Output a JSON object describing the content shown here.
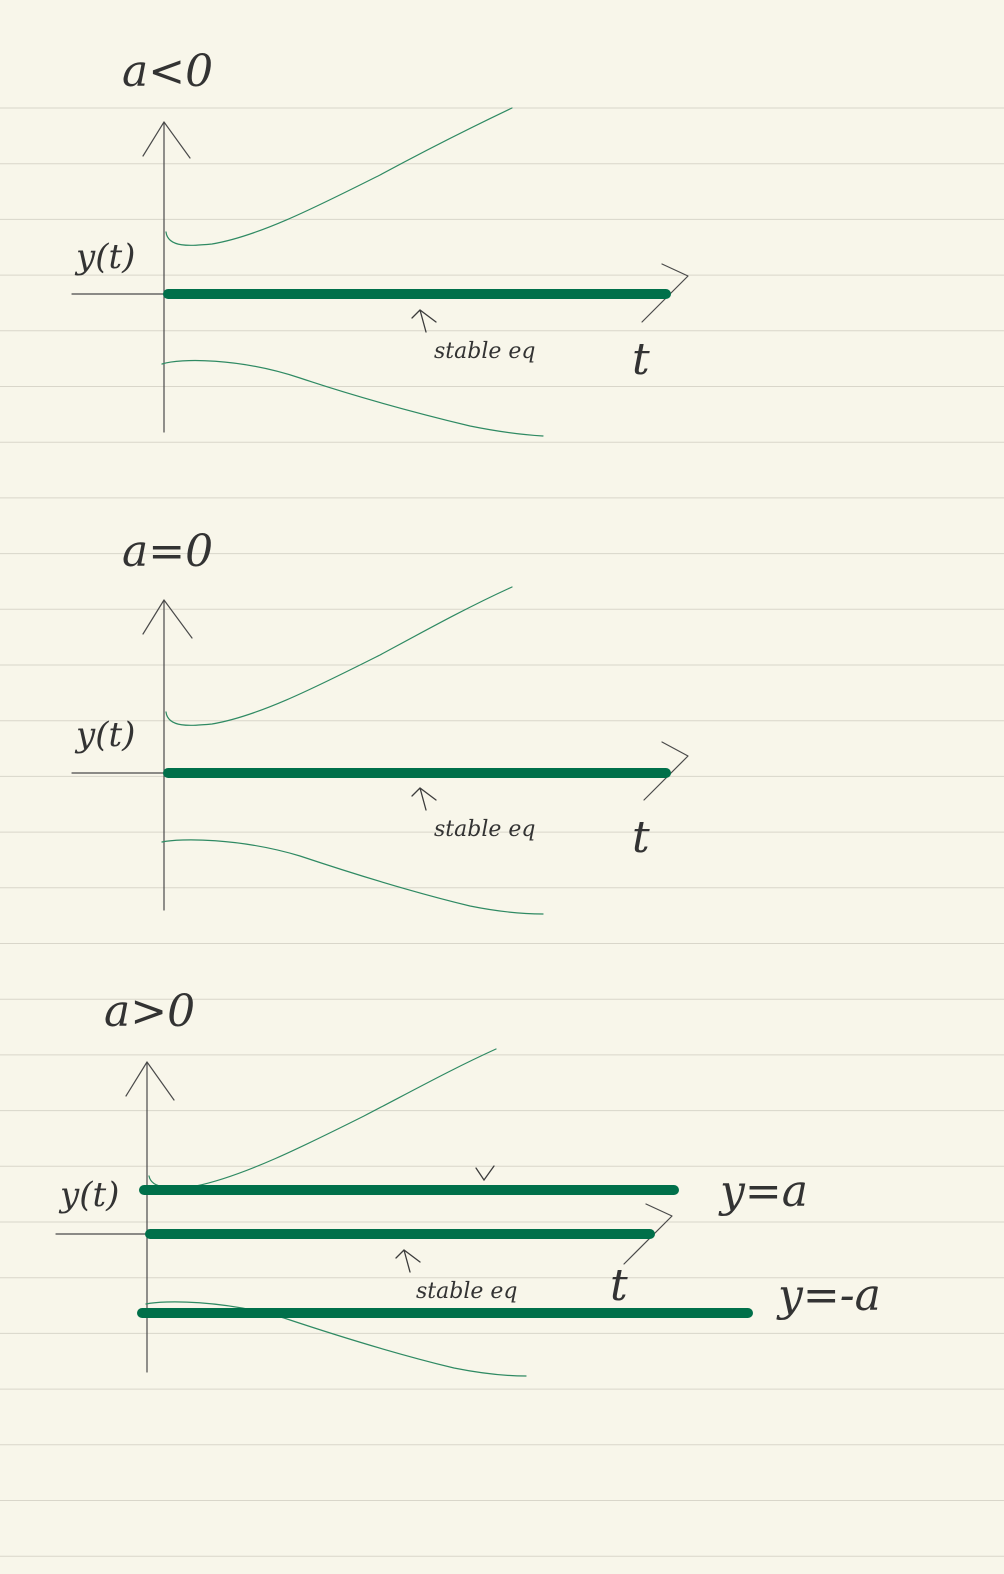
{
  "panels": [
    {
      "condition": "a<0",
      "y_label": "y(t)",
      "x_label": "t",
      "annotation": "stable eq",
      "eq_labels": []
    },
    {
      "condition": "a=0",
      "y_label": "y(t)",
      "x_label": "t",
      "annotation": "stable eq",
      "eq_labels": []
    },
    {
      "condition": "a>0",
      "y_label": "y(t)",
      "x_label": "t",
      "annotation": "stable eq",
      "eq_labels": [
        "y=a",
        "y=-a"
      ]
    }
  ],
  "colors": {
    "paper": "#f8f6ea",
    "rule": "#d9d6ca",
    "ink": "#333333",
    "equilibrium": "#00704a",
    "trajectory": "#2f8a63"
  }
}
